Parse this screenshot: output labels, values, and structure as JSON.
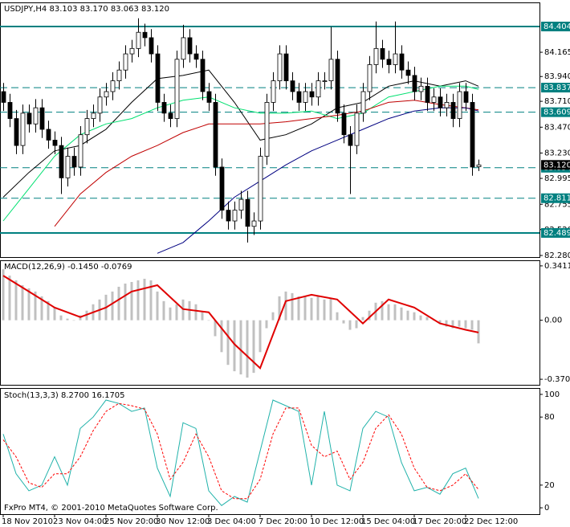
{
  "chart_data": [
    {
      "type": "candlestick",
      "title": "USDJPY,H4  83.103 83.170 83.063 83.120",
      "open": [
        83.8,
        83.7,
        83.55,
        83.3,
        83.6,
        83.5,
        83.65,
        83.45,
        83.35,
        83.3,
        83.0,
        83.2,
        83.1,
        83.4,
        83.55,
        83.6,
        83.75,
        83.8,
        83.9,
        84.0,
        84.15,
        84.2,
        84.35,
        84.3,
        84.15,
        83.7,
        83.6,
        83.55,
        84.1,
        84.3,
        84.15,
        84.1,
        83.8,
        83.7,
        83.1,
        82.7,
        82.6,
        82.7,
        82.8,
        82.55,
        82.6,
        83.2,
        83.7,
        83.9,
        84.15,
        83.9,
        83.8,
        83.7,
        83.8,
        83.75,
        83.9,
        83.9,
        84.1,
        83.6,
        83.4,
        83.3,
        83.6,
        83.8,
        84.05,
        84.2,
        84.1,
        84.05,
        84.15,
        84.0,
        83.95,
        83.8,
        83.85,
        83.7,
        83.75,
        83.65,
        83.7,
        83.55,
        83.8,
        83.7,
        83.103
      ],
      "high": [
        83.88,
        83.78,
        83.63,
        83.68,
        83.68,
        83.73,
        83.73,
        83.53,
        83.43,
        83.38,
        83.28,
        83.28,
        83.48,
        83.63,
        83.68,
        83.83,
        83.88,
        83.98,
        84.08,
        84.23,
        84.28,
        84.48,
        84.43,
        84.38,
        84.23,
        83.78,
        83.68,
        84.18,
        84.42,
        84.38,
        84.23,
        84.18,
        83.88,
        83.78,
        83.18,
        82.78,
        82.78,
        82.88,
        82.88,
        82.68,
        83.28,
        83.78,
        83.98,
        84.23,
        84.23,
        83.98,
        83.88,
        83.88,
        83.88,
        83.98,
        83.98,
        84.4,
        84.18,
        83.68,
        83.48,
        83.68,
        83.88,
        84.13,
        84.45,
        84.28,
        84.18,
        84.45,
        84.23,
        84.08,
        84.03,
        83.93,
        83.93,
        83.83,
        83.83,
        83.78,
        83.78,
        83.88,
        83.88,
        83.78,
        83.17
      ],
      "low": [
        83.62,
        83.47,
        83.22,
        83.22,
        83.42,
        83.42,
        83.37,
        83.27,
        83.22,
        82.85,
        82.92,
        83.02,
        83.02,
        83.32,
        83.47,
        83.52,
        83.67,
        83.72,
        83.82,
        83.92,
        84.07,
        84.12,
        84.22,
        84.07,
        83.62,
        83.52,
        83.47,
        83.47,
        84.02,
        84.07,
        84.02,
        83.72,
        83.62,
        83.02,
        82.62,
        82.52,
        82.52,
        82.62,
        82.4,
        82.47,
        82.52,
        83.12,
        83.62,
        83.82,
        83.82,
        83.72,
        83.62,
        83.62,
        83.67,
        83.67,
        83.82,
        83.82,
        83.52,
        83.32,
        82.85,
        83.22,
        83.52,
        83.72,
        83.97,
        84.02,
        83.97,
        83.97,
        83.92,
        83.87,
        83.72,
        83.72,
        83.62,
        83.62,
        83.57,
        83.57,
        83.47,
        83.47,
        83.62,
        83.02,
        83.063
      ],
      "close": [
        83.7,
        83.55,
        83.3,
        83.6,
        83.5,
        83.65,
        83.45,
        83.35,
        83.3,
        83.0,
        83.2,
        83.1,
        83.4,
        83.55,
        83.6,
        83.75,
        83.8,
        83.9,
        84.0,
        84.15,
        84.2,
        84.35,
        84.3,
        84.15,
        83.7,
        83.6,
        83.55,
        84.1,
        84.3,
        84.15,
        84.1,
        83.8,
        83.7,
        83.1,
        82.7,
        82.6,
        82.7,
        82.8,
        82.55,
        82.6,
        83.2,
        83.7,
        83.9,
        84.15,
        83.9,
        83.8,
        83.7,
        83.8,
        83.75,
        83.9,
        83.9,
        84.1,
        83.6,
        83.4,
        83.3,
        83.6,
        83.8,
        84.05,
        84.2,
        84.1,
        84.05,
        84.15,
        84.0,
        83.95,
        83.8,
        83.85,
        83.7,
        83.75,
        83.65,
        83.7,
        83.55,
        83.8,
        83.7,
        83.1,
        83.12
      ],
      "bull_color": "#ffffff",
      "bear_color": "#000000",
      "line_x": [
        0,
        4,
        8,
        12,
        16,
        20,
        24,
        28,
        32,
        36,
        40,
        44,
        48,
        52,
        56,
        60,
        64,
        68,
        72,
        74
      ],
      "series": [
        {
          "color": "#000000",
          "values": [
            82.82,
            83.05,
            83.25,
            83.3,
            83.45,
            83.7,
            83.92,
            83.95,
            84.0,
            83.7,
            83.35,
            83.4,
            83.5,
            83.65,
            83.7,
            83.85,
            83.9,
            83.85,
            83.9,
            83.85
          ]
        },
        {
          "color": "#00e070",
          "values": [
            82.6,
            82.9,
            83.2,
            83.4,
            83.5,
            83.55,
            83.65,
            83.72,
            83.75,
            83.65,
            83.6,
            83.6,
            83.62,
            83.55,
            83.6,
            83.75,
            83.8,
            83.85,
            83.85,
            83.82
          ]
        },
        {
          "color": "#c00000",
          "values": [
            null,
            null,
            82.55,
            82.85,
            83.05,
            83.2,
            83.3,
            83.42,
            83.5,
            83.5,
            83.5,
            83.52,
            83.55,
            83.58,
            83.62,
            83.7,
            83.72,
            83.68,
            83.65,
            83.63
          ]
        },
        {
          "color": "#000080",
          "values": [
            null,
            null,
            null,
            null,
            null,
            null,
            82.3,
            82.4,
            82.6,
            82.82,
            82.97,
            83.12,
            83.25,
            83.35,
            83.45,
            83.55,
            83.62,
            83.65,
            83.65,
            83.62
          ]
        }
      ],
      "levels": [
        84.404,
        83.837,
        83.609,
        83.094,
        82.811,
        82.489
      ],
      "level_styles": [
        "solid",
        "dashed",
        "dashed",
        "dashed",
        "dashed",
        "solid"
      ],
      "level_color": "#008080",
      "last_price": {
        "value": 83.12,
        "label": "83.120"
      },
      "ylim": [
        82.265,
        84.62
      ],
      "yticks": [
        84.165,
        {
          "value": 83.94,
          "label": "83.940"
        },
        {
          "value": 83.71,
          "label": "83.710"
        },
        {
          "value": 83.47,
          "label": "83.470"
        },
        {
          "value": 83.23,
          "label": "83.230"
        },
        82.995,
        82.755,
        {
          "value": 82.52,
          "label": "82.520"
        },
        {
          "value": 82.28,
          "label": "82.280"
        }
      ]
    },
    {
      "type": "bar",
      "title": "MACD(12,26,9) -0.1450 -0.0769",
      "color": "#c0c0c0",
      "values": [
        0.32,
        0.28,
        0.25,
        0.22,
        0.2,
        0.18,
        0.15,
        0.12,
        0.08,
        0.03,
        0.01,
        0.0,
        0.03,
        0.06,
        0.1,
        0.13,
        0.16,
        0.18,
        0.21,
        0.23,
        0.24,
        0.25,
        0.26,
        0.25,
        0.18,
        0.12,
        0.08,
        0.1,
        0.13,
        0.12,
        0.1,
        0.05,
        0.0,
        -0.1,
        -0.2,
        -0.28,
        -0.32,
        -0.34,
        -0.36,
        -0.33,
        -0.2,
        -0.05,
        0.05,
        0.15,
        0.18,
        0.17,
        0.15,
        0.15,
        0.14,
        0.15,
        0.13,
        0.14,
        0.05,
        -0.02,
        -0.06,
        -0.05,
        0.02,
        0.06,
        0.11,
        0.12,
        0.1,
        0.1,
        0.08,
        0.06,
        0.05,
        0.03,
        0.02,
        0.0,
        -0.02,
        -0.04,
        -0.05,
        -0.04,
        -0.05,
        -0.06,
        -0.145
      ],
      "line_x": [
        0,
        4,
        8,
        12,
        16,
        20,
        24,
        28,
        32,
        36,
        40,
        44,
        48,
        52,
        56,
        60,
        64,
        68,
        72,
        74
      ],
      "series": [
        {
          "color": "#e00000",
          "values": [
            0.28,
            0.18,
            0.08,
            0.02,
            0.08,
            0.18,
            0.22,
            0.07,
            0.05,
            -0.15,
            -0.3,
            0.12,
            0.16,
            0.13,
            -0.02,
            0.13,
            0.08,
            -0.02,
            -0.06,
            -0.0769
          ]
        }
      ],
      "ylim": [
        -0.405,
        0.371
      ],
      "yticks": [
        0.3411,
        {
          "value": 0,
          "label": "0.00"
        },
        -0.3702
      ]
    },
    {
      "type": "line",
      "title": "Stoch(13,3,3) 8.2700 16.1705",
      "footer": "FxPro MT4, © 2001-2010 MetaQuotes Software Corp.",
      "categories": [
        "18 Nov 2010",
        null,
        null,
        null,
        null,
        null,
        null,
        null,
        "23 Nov 04:00",
        null,
        null,
        null,
        null,
        null,
        null,
        null,
        "25 Nov 20:00",
        null,
        null,
        null,
        null,
        null,
        null,
        null,
        "30 Nov 12:00",
        null,
        null,
        null,
        null,
        null,
        null,
        null,
        "3 Dec 04:00",
        null,
        null,
        null,
        null,
        null,
        null,
        null,
        "7 Dec 20:00",
        null,
        null,
        null,
        null,
        null,
        null,
        null,
        "10 Dec 12:00",
        null,
        null,
        null,
        null,
        null,
        null,
        null,
        "15 Dec 04:00",
        null,
        null,
        null,
        null,
        null,
        null,
        null,
        "17 Dec 20:00",
        null,
        null,
        null,
        null,
        null,
        null,
        null,
        "22 Dec 12:00",
        null,
        null
      ],
      "x": [
        0,
        2,
        4,
        6,
        8,
        10,
        12,
        14,
        16,
        18,
        20,
        22,
        24,
        26,
        28,
        30,
        32,
        34,
        36,
        38,
        40,
        42,
        44,
        46,
        48,
        50,
        52,
        54,
        56,
        58,
        60,
        62,
        64,
        66,
        68,
        70,
        72,
        74
      ],
      "series": [
        {
          "color": "#20b2aa",
          "dashed": false,
          "values": [
            65,
            30,
            15,
            20,
            45,
            20,
            70,
            80,
            95,
            92,
            85,
            88,
            35,
            10,
            75,
            70,
            15,
            2,
            10,
            5,
            50,
            95,
            90,
            85,
            20,
            85,
            20,
            15,
            70,
            85,
            80,
            40,
            15,
            18,
            12,
            30,
            35,
            8.27
          ]
        },
        {
          "color": "#ff0000",
          "dashed": true,
          "values": [
            60,
            45,
            22,
            18,
            30,
            30,
            45,
            68,
            85,
            92,
            90,
            87,
            65,
            25,
            40,
            65,
            45,
            15,
            8,
            8,
            25,
            65,
            88,
            88,
            55,
            45,
            50,
            25,
            40,
            70,
            82,
            65,
            35,
            18,
            15,
            20,
            30,
            16.17
          ]
        }
      ],
      "ylim": [
        -5.6,
        104.9
      ],
      "yticks": [
        100,
        80,
        20,
        0
      ]
    }
  ]
}
